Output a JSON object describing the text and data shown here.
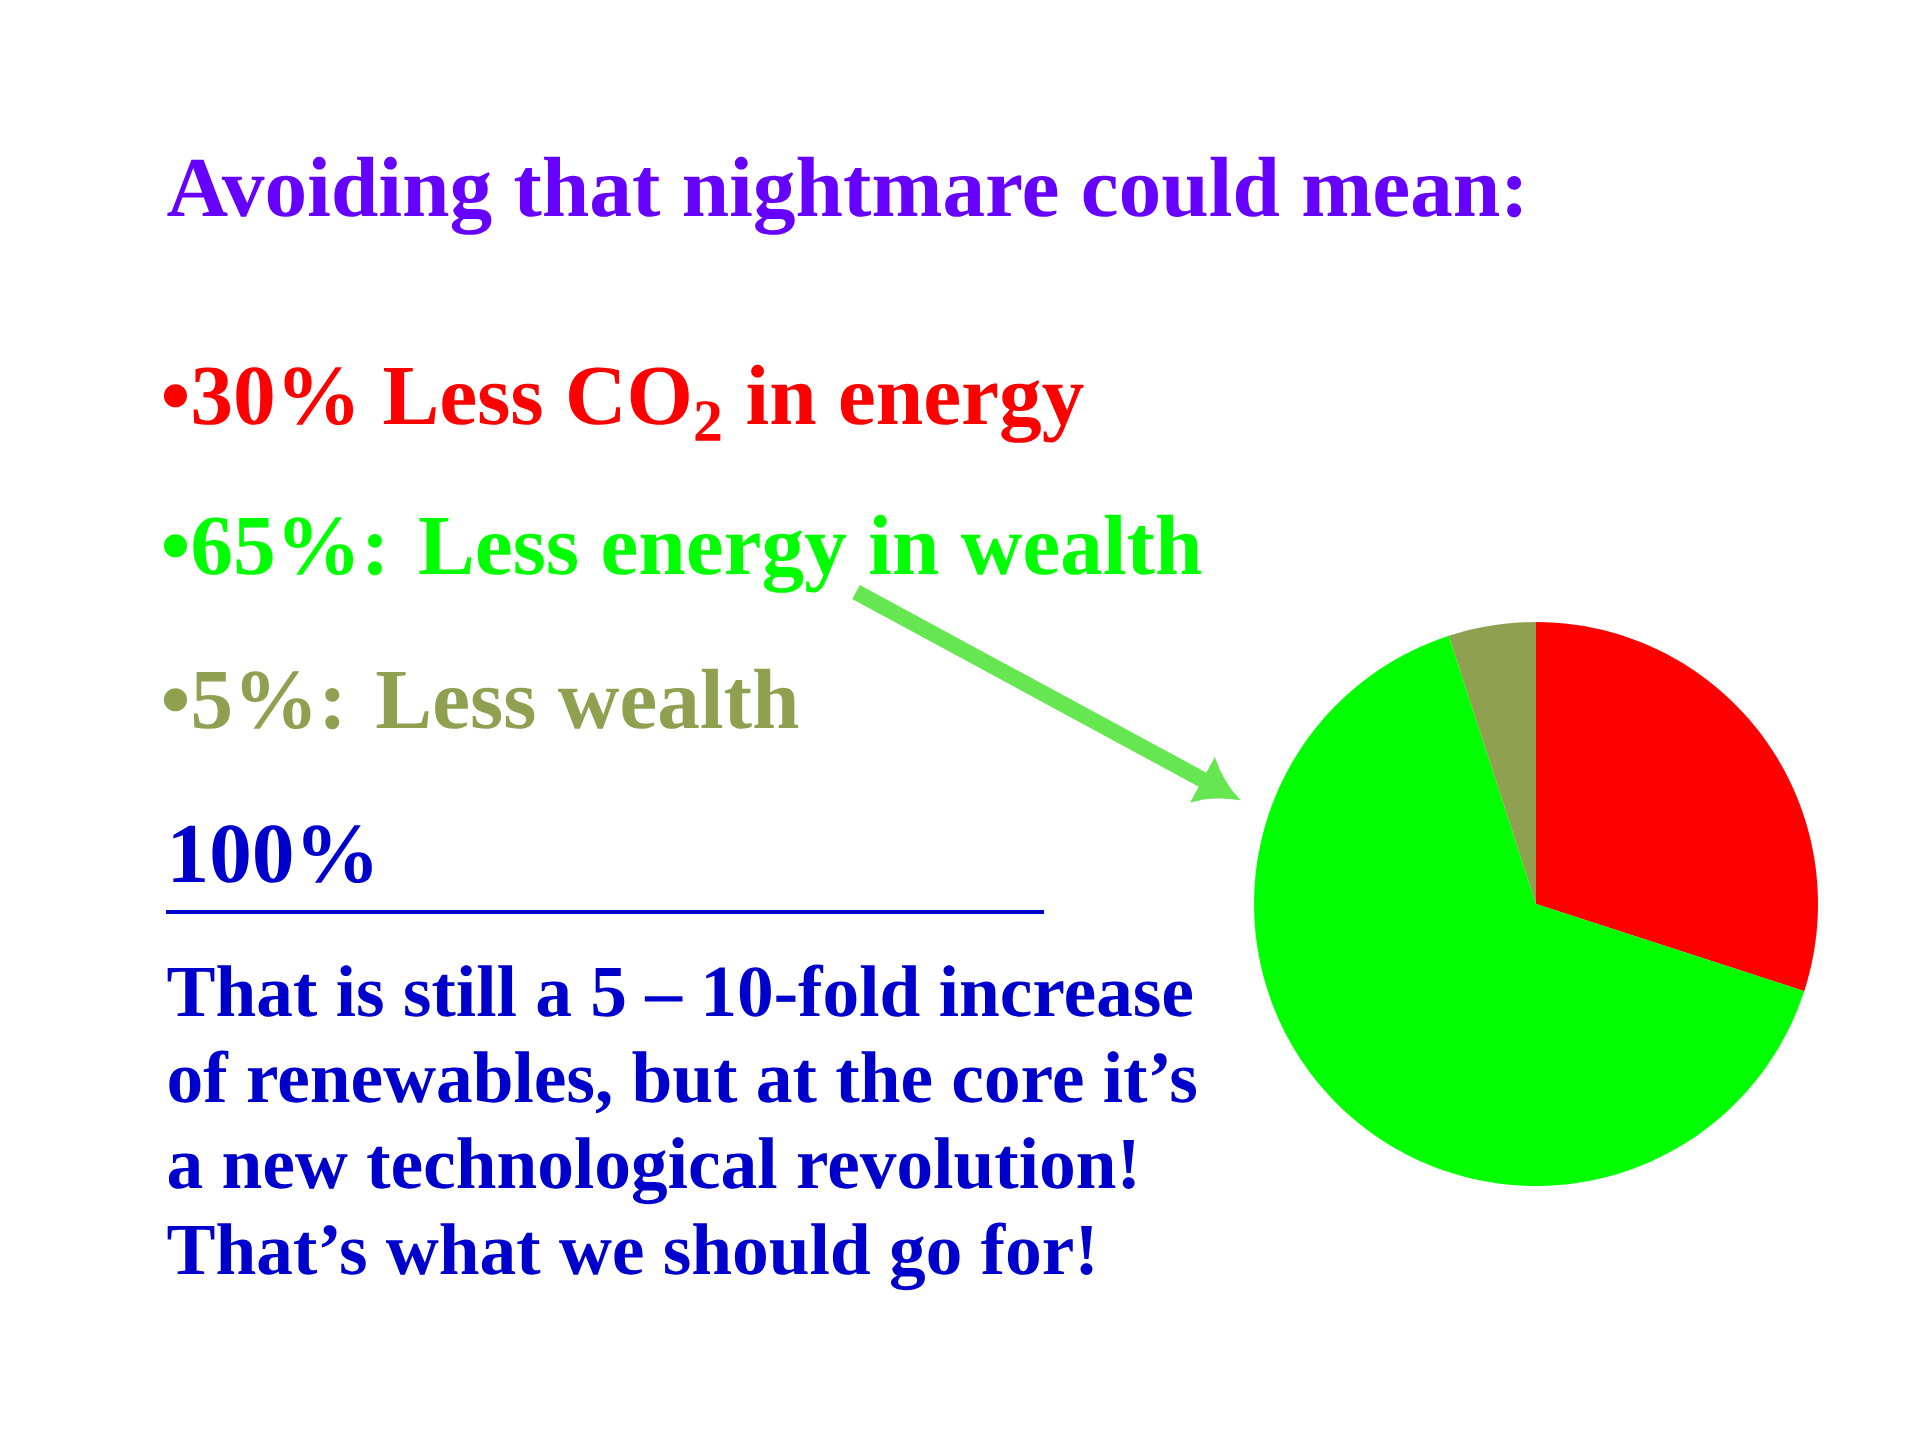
{
  "chart_data": {
    "type": "pie",
    "title": "Avoiding that nightmare could mean:",
    "categories": [
      null,
      null,
      null
    ],
    "values": [
      30,
      65,
      5
    ],
    "colors": [
      "#ff0000",
      "#00ff00",
      "#8fa050"
    ],
    "annotations": [
      "•30% Less CO$_{2}$ in energy",
      "•65%: Less energy in wealth",
      "•5%: Less wealth",
      "100%",
      "That is still a 5 – 10-fold increase",
      "of renewables, but at the core it’s",
      "a new technological revolution!",
      "That’s what we should go for!"
    ]
  }
}
